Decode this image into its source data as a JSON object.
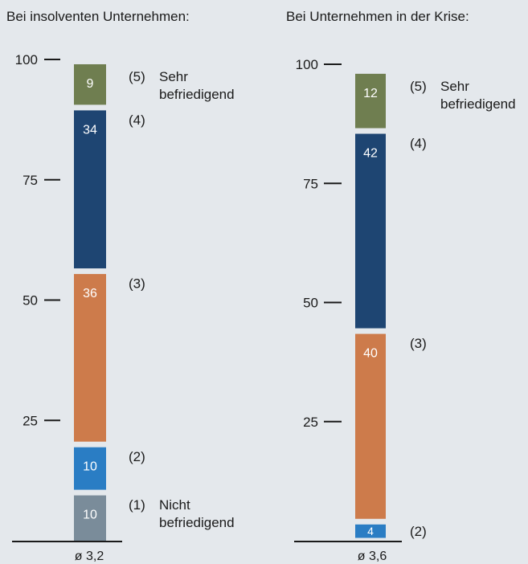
{
  "colors": {
    "background": "#e4e8ec",
    "cat1": "#7a8c9a",
    "cat2": "#2a7dc4",
    "cat3": "#cd7b4b",
    "cat4": "#1e4572",
    "cat5": "#6f7e50",
    "separator": "#ffffff",
    "axis": "#1a1a1a"
  },
  "chart_data": [
    {
      "type": "bar",
      "stacked": true,
      "title": "Bei insolventen Unternehmen:",
      "ylim": [
        0,
        100
      ],
      "yticks": [
        25,
        50,
        75,
        100
      ],
      "average_label": "ø 3,2",
      "segments": [
        {
          "key": "cat1",
          "value": 10,
          "label": "10",
          "category": [
            "(1)",
            "Nicht",
            "befriedigend"
          ]
        },
        {
          "key": "cat2",
          "value": 10,
          "label": "10",
          "category": [
            "(2)"
          ]
        },
        {
          "key": "cat3",
          "value": 36,
          "label": "36",
          "category": [
            "(3)"
          ]
        },
        {
          "key": "cat4",
          "value": 34,
          "label": "34",
          "category": [
            "(4)"
          ]
        },
        {
          "key": "cat5",
          "value": 9,
          "label": "9",
          "category": [
            "(5)",
            "Sehr",
            "befriedigend"
          ]
        }
      ]
    },
    {
      "type": "bar",
      "stacked": true,
      "title": "Bei Unternehmen in der Krise:",
      "ylim": [
        0,
        100
      ],
      "yticks": [
        25,
        50,
        75,
        100
      ],
      "average_label": "ø 3,6",
      "segments": [
        {
          "key": "cat1",
          "value": 0,
          "label": "",
          "category": []
        },
        {
          "key": "cat2",
          "value": 4,
          "label": "4",
          "category": [
            "(2)"
          ]
        },
        {
          "key": "cat3",
          "value": 40,
          "label": "40",
          "category": [
            "(3)"
          ]
        },
        {
          "key": "cat4",
          "value": 42,
          "label": "42",
          "category": [
            "(4)"
          ]
        },
        {
          "key": "cat5",
          "value": 12,
          "label": "12",
          "category": [
            "(5)",
            "Sehr",
            "befriedigend"
          ]
        }
      ]
    }
  ]
}
